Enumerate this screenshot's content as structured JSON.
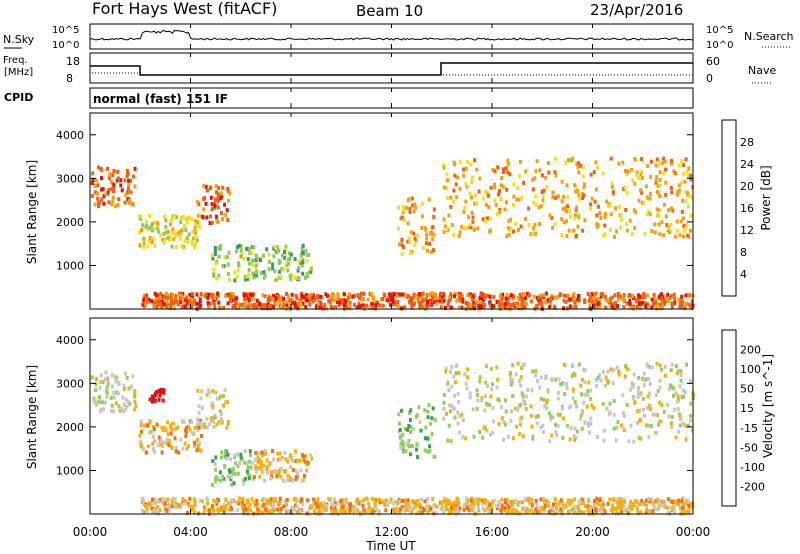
{
  "header": {
    "station": "Fort Hays West (fitACF)",
    "beam": "Beam 10",
    "date": "23/Apr/2016"
  },
  "noise_panel": {
    "left_label": "N.Sky",
    "right_label": "N.Search",
    "ticks": [
      "10^5",
      "10^0"
    ]
  },
  "freq_panel": {
    "left_label_1": "Freq.",
    "left_label_2": "[MHz]",
    "right_label": "Nave",
    "left_ticks": [
      "18",
      "8"
    ],
    "right_ticks": [
      "60",
      "0"
    ]
  },
  "cpid": {
    "label": "CPID",
    "mode": "normal (fast) 151 IF"
  },
  "chart_data": [
    {
      "type": "heatmap",
      "name": "power",
      "ylabel": "Slant Range [km]",
      "yticks": [
        "4000",
        "3000",
        "2000",
        "1000"
      ],
      "colorbar_title": "Power [dB]",
      "colorbar_ticks": [
        "28",
        "24",
        "20",
        "16",
        "12",
        "8",
        "4"
      ],
      "colors": [
        "#e01010",
        "#f06010",
        "#f4a010",
        "#f0e020",
        "#8ec860",
        "#3a9a60",
        "#2a5aa8",
        "#1010d0"
      ],
      "regions": [
        {
          "t": [
            0.0,
            1.8
          ],
          "r": [
            2400,
            3300
          ],
          "level": 1
        },
        {
          "t": [
            1.9,
            4.4
          ],
          "r": [
            1450,
            2200
          ],
          "level": 3
        },
        {
          "t": [
            4.2,
            5.5
          ],
          "r": [
            2000,
            2900
          ],
          "level": 1
        },
        {
          "t": [
            4.8,
            8.8
          ],
          "r": [
            700,
            1500
          ],
          "level": 4
        },
        {
          "t": [
            12.2,
            13.7
          ],
          "r": [
            1300,
            2600
          ],
          "level": 2
        },
        {
          "t": [
            14.0,
            24.0
          ],
          "r": [
            1700,
            3500
          ],
          "level": 2
        },
        {
          "t": [
            2.0,
            24.0
          ],
          "r": [
            50,
            400
          ],
          "level": 1
        }
      ]
    },
    {
      "type": "heatmap",
      "name": "velocity",
      "ylabel": "Slant Range [km]",
      "yticks": [
        "4000",
        "3000",
        "2000",
        "1000"
      ],
      "colorbar_title": "Velocity [m s^-1]",
      "colorbar_ticks": [
        "200",
        "100",
        "50",
        "15",
        "-15",
        "-50",
        "-100",
        "-200"
      ],
      "colors": [
        "#1a2fb4",
        "#2a7f6f",
        "#3aa04a",
        "#8ed060",
        "#c8c8c0",
        "#f4b010",
        "#f07010",
        "#e83a10",
        "#e01010"
      ],
      "regions": [
        {
          "t": [
            0.0,
            1.8
          ],
          "r": [
            2400,
            3300
          ],
          "level": 4
        },
        {
          "t": [
            2.3,
            2.9
          ],
          "r": [
            2600,
            2900
          ],
          "level": 8
        },
        {
          "t": [
            1.9,
            4.4
          ],
          "r": [
            1450,
            2200
          ],
          "level": 5
        },
        {
          "t": [
            4.2,
            5.5
          ],
          "r": [
            2000,
            2900
          ],
          "level": 4
        },
        {
          "t": [
            4.8,
            6.4
          ],
          "r": [
            700,
            1500
          ],
          "level": 3
        },
        {
          "t": [
            6.4,
            8.8
          ],
          "r": [
            800,
            1500
          ],
          "level": 5
        },
        {
          "t": [
            12.2,
            13.7
          ],
          "r": [
            1300,
            2600
          ],
          "level": 3
        },
        {
          "t": [
            14.0,
            24.0
          ],
          "r": [
            1700,
            3500
          ],
          "level": 4
        },
        {
          "t": [
            2.0,
            24.0
          ],
          "r": [
            50,
            400
          ],
          "level": 5
        }
      ]
    }
  ],
  "x_axis": {
    "ticks": [
      "00:00",
      "04:00",
      "08:00",
      "12:00",
      "16:00",
      "20:00",
      "00:00"
    ],
    "label": "Time UT"
  }
}
